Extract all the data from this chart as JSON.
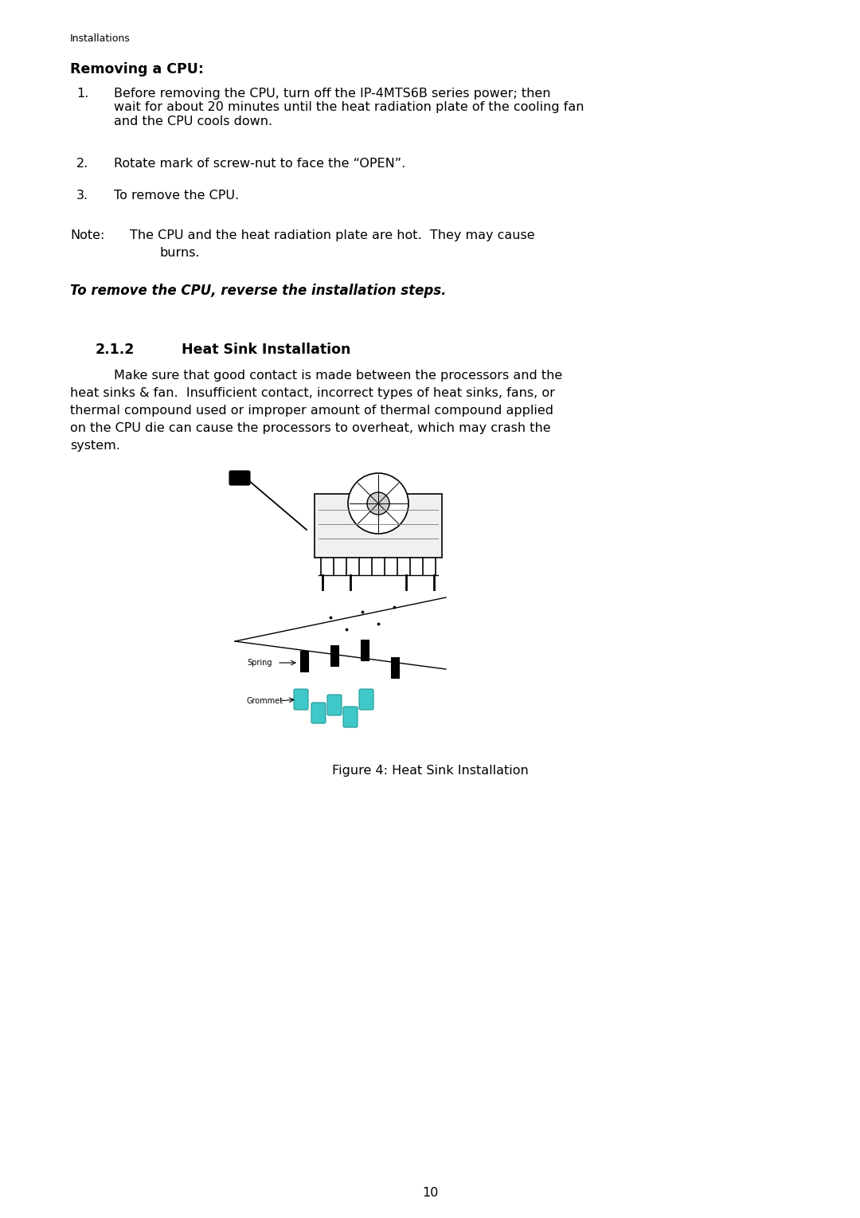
{
  "bg_color": "#ffffff",
  "page_number": "10",
  "header_text": "Installations",
  "section_title": "Removing a CPU:",
  "item1": "Before removing the CPU, turn off the IP-4MTS6B series power; then\nwait for about 20 minutes until the heat radiation plate of the cooling fan\nand the CPU cools down.",
  "item2": "Rotate mark of screw-nut to face the “OPEN”.",
  "item3": "To remove the CPU.",
  "note_label": "Note:",
  "note_line1": "The CPU and the heat radiation plate are hot.  They may cause",
  "note_line2": "burns.",
  "italic_bold_line": "To remove the CPU, reverse the installation steps.",
  "subsection_num": "2.1.2",
  "subsection_title": "Heat Sink Installation",
  "body_line1": "Make sure that good contact is made between the processors and the",
  "body_line2": "heat sinks & fan.  Insufficient contact, incorrect types of heat sinks, fans, or",
  "body_line3": "thermal compound used or improper amount of thermal compound applied",
  "body_line4": "on the CPU die can cause the processors to overheat, which may crash the",
  "body_line5": "system.",
  "figure_caption": "Figure 4: Heat Sink Installation",
  "text_color": "#000000",
  "teal_color": "#40C8C8",
  "ml": 0.085,
  "num_indent": 0.115,
  "body_indent": 0.145
}
